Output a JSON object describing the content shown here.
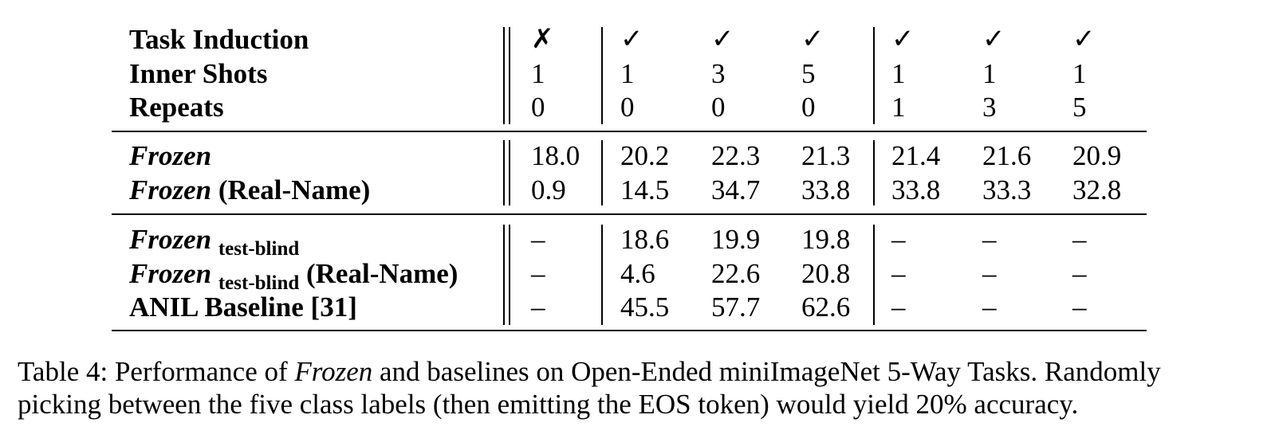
{
  "table": {
    "header_rows": [
      {
        "label": "Task Induction",
        "cells": [
          "✗",
          "✓",
          "✓",
          "✓",
          "✓",
          "✓",
          "✓"
        ]
      },
      {
        "label": "Inner Shots",
        "cells": [
          "1",
          "1",
          "3",
          "5",
          "1",
          "1",
          "1"
        ]
      },
      {
        "label": "Repeats",
        "cells": [
          "0",
          "0",
          "0",
          "0",
          "1",
          "3",
          "5"
        ]
      }
    ],
    "group1": [
      {
        "label_italic": "Frozen",
        "label_rest": "",
        "subscript": "",
        "cells": [
          "18.0",
          "20.2",
          "22.3",
          "21.3",
          "21.4",
          "21.6",
          "20.9"
        ]
      },
      {
        "label_italic": "Frozen",
        "label_rest": "(Real-Name)",
        "subscript": "",
        "cells": [
          "0.9",
          "14.5",
          "34.7",
          "33.8",
          "33.8",
          "33.3",
          "32.8"
        ]
      }
    ],
    "group2": [
      {
        "label_italic": "Frozen",
        "label_rest": "",
        "subscript": "test-blind",
        "cells": [
          "–",
          "18.6",
          "19.9",
          "19.8",
          "–",
          "–",
          "–"
        ]
      },
      {
        "label_italic": "Frozen",
        "label_rest": "(Real-Name)",
        "subscript": "test-blind",
        "cells": [
          "–",
          "4.6",
          "22.6",
          "20.8",
          "–",
          "–",
          "–"
        ]
      },
      {
        "label_italic": "",
        "label_rest": "ANIL Baseline [31]",
        "subscript": "",
        "cells": [
          "–",
          "45.5",
          "57.7",
          "62.6",
          "–",
          "–",
          "–"
        ]
      }
    ]
  },
  "caption": {
    "prefix": "Table 4: Performance of ",
    "emph": "Frozen",
    "line1_rest": " and baselines on Open-Ended miniImageNet 5-Way Tasks. Randomly",
    "line2": "picking between the five class labels (then emitting the EOS token) would yield 20% accuracy."
  }
}
